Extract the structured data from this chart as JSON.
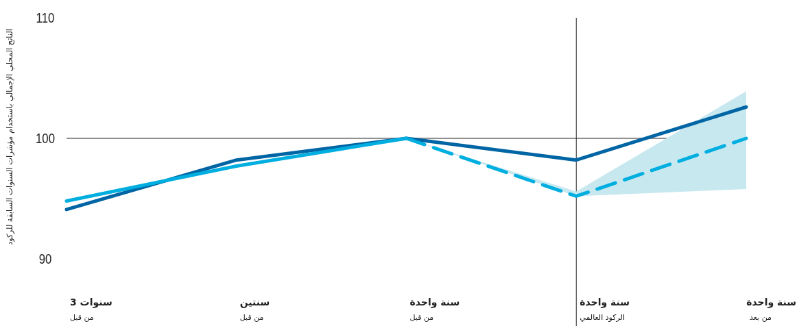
{
  "chart_data": {
    "type": "line",
    "ylabel": "الناتج المحلي الإجمالي باستخدام مؤشرات السنوات السابقة للركود",
    "categories": [
      "سنوات 3\nمن قبل",
      "سنتين\nمن قبل",
      "سنة واحدة\nمن قبل",
      "سنة واحدة\nالركود العالمي",
      "سنة واحدة\nمن بعد"
    ],
    "series": [
      {
        "color": "#0065a4",
        "values": [
          94.1,
          98.2,
          100,
          98.2,
          102.6
        ],
        "line_style": "solid"
      },
      {
        "color": "#00aee0",
        "values": [
          94.8,
          97.7,
          100,
          null,
          null
        ],
        "line_style": "solid"
      },
      {
        "color": "#00aee0",
        "values": [
          null,
          null,
          100,
          95.2,
          100
        ],
        "line_style": "dashed",
        "lower": [
          null,
          null,
          100,
          95.2,
          95.8
        ],
        "upper": [
          null,
          null,
          100,
          95.6,
          103.9
        ]
      }
    ],
    "ylim": [
      90,
      110
    ],
    "yticks": [
      90,
      100,
      110
    ],
    "grid": false,
    "ref_lines": [
      {
        "axis": "y",
        "value": 100,
        "color": "#222222"
      },
      {
        "axis": "x",
        "value": "سنة واحدة\nالركود العالمي",
        "color": "#222222"
      }
    ]
  }
}
